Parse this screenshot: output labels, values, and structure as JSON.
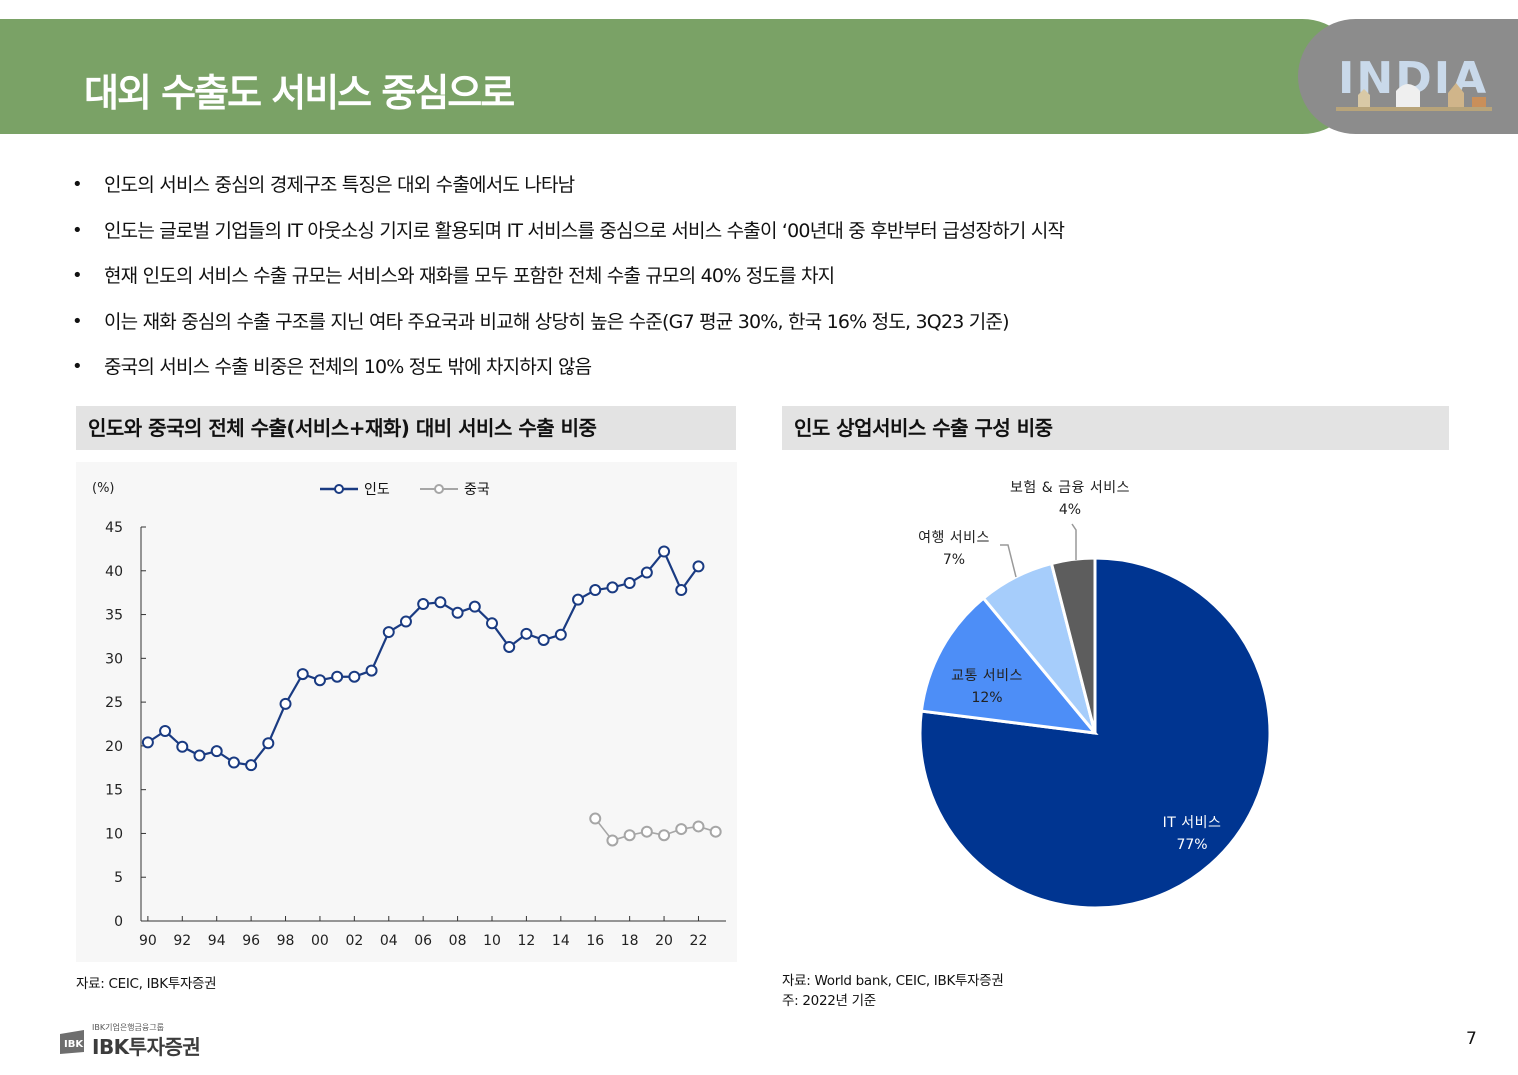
{
  "header": {
    "title": "대외 수출도 서비스 중심으로",
    "logo_text": "INDIA"
  },
  "bullets": [
    "인도의 서비스 중심의 경제구조 특징은 대외 수출에서도 나타남",
    "인도는 글로벌 기업들의 IT 아웃소싱 기지로 활용되며 IT 서비스를 중심으로 서비스 수출이 ‘00년대 중 후반부터 급성장하기 시작",
    "현재 인도의 서비스 수출 규모는 서비스와 재화를 모두 포함한 전체 수출 규모의 40% 정도를 차지",
    "이는 재화 중심의 수출 구조를 지닌 여타 주요국과 비교해 상당히 높은 수준(G7 평균 30%, 한국 16% 정도, 3Q23 기준)",
    "중국의 서비스 수출 비중은 전체의 10% 정도 밖에 차지하지 않음"
  ],
  "left_panel": {
    "title": "인도와 중국의 전체 수출(서비스+재화) 대비 서비스 수출 비중",
    "source": "자료: CEIC, IBK투자증권"
  },
  "right_panel": {
    "title": "인도 상업서비스 수출 구성 비중",
    "source": "자료: World bank, CEIC, IBK투자증권",
    "note": "주: 2022년 기준"
  },
  "colors": {
    "header_green": "#7aa266",
    "india_line": "#1a3b82",
    "china_line": "#a6a6a6",
    "pie_it": "#003591",
    "pie_transport": "#4d8ef7",
    "pie_travel": "#a6cdfb",
    "pie_insurance": "#5d5d5d"
  },
  "chart_data": [
    {
      "type": "line",
      "title": "인도와 중국의 전체 수출(서비스+재화) 대비 서비스 수출 비중",
      "ylabel": "(%)",
      "ylim": [
        0,
        45
      ],
      "yticks": [
        0,
        5,
        10,
        15,
        20,
        25,
        30,
        35,
        40,
        45
      ],
      "xlim": [
        1989.6,
        2023.6
      ],
      "xticks": [
        1990,
        1992,
        1994,
        1996,
        1998,
        2000,
        2002,
        2004,
        2006,
        2008,
        2010,
        2012,
        2014,
        2016,
        2018,
        2020,
        2022
      ],
      "xticklabels": [
        "90",
        "92",
        "94",
        "96",
        "98",
        "00",
        "02",
        "04",
        "06",
        "08",
        "10",
        "12",
        "14",
        "16",
        "18",
        "20",
        "22"
      ],
      "legend": "top-center",
      "series": [
        {
          "name": "인도",
          "color": "#1a3b82",
          "x": [
            1990,
            1991,
            1992,
            1993,
            1994,
            1995,
            1996,
            1997,
            1998,
            1999,
            2000,
            2001,
            2002,
            2003,
            2004,
            2005,
            2006,
            2007,
            2008,
            2009,
            2010,
            2011,
            2012,
            2013,
            2014,
            2015,
            2016,
            2017,
            2018,
            2019,
            2020,
            2021,
            2022
          ],
          "values": [
            20.4,
            21.7,
            19.9,
            18.9,
            19.4,
            18.1,
            17.8,
            20.3,
            24.8,
            28.2,
            27.5,
            27.9,
            27.9,
            28.6,
            33.0,
            34.2,
            36.2,
            36.4,
            35.2,
            35.9,
            34.0,
            31.3,
            32.8,
            32.1,
            32.7,
            36.7,
            37.8,
            38.1,
            38.6,
            39.8,
            42.2,
            37.8,
            40.5
          ]
        },
        {
          "name": "중국",
          "color": "#a6a6a6",
          "x": [
            2016,
            2017,
            2018,
            2019,
            2020,
            2021,
            2022,
            2023
          ],
          "values": [
            11.7,
            9.2,
            9.8,
            10.2,
            9.8,
            10.5,
            10.8,
            10.2
          ]
        }
      ]
    },
    {
      "type": "pie",
      "title": "인도 상업서비스 수출 구성 비중",
      "slices": [
        {
          "label": "IT 서비스",
          "value": 77,
          "display": "77%",
          "color": "#003591"
        },
        {
          "label": "교통 서비스",
          "value": 12,
          "display": "12%",
          "color": "#4d8ef7"
        },
        {
          "label": "여행 서비스",
          "value": 7,
          "display": "7%",
          "color": "#a6cdfb"
        },
        {
          "label": "보험 & 금융 서비스",
          "value": 4,
          "display": "4%",
          "color": "#5d5d5d"
        }
      ]
    }
  ],
  "footer": {
    "brand_small": "IBK기업은행금융그룹",
    "brand_name": "IBK투자증권",
    "page_number": "7"
  }
}
